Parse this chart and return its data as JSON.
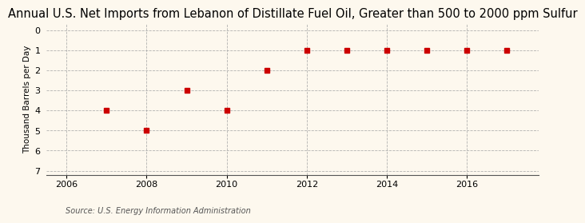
{
  "title": "Annual U.S. Net Imports from Lebanon of Distillate Fuel Oil, Greater than 500 to 2000 ppm Sulfur",
  "ylabel": "Thousand Barrels per Day",
  "source": "Source: U.S. Energy Information Administration",
  "x": [
    2007,
    2008,
    2009,
    2010,
    2011,
    2012,
    2013,
    2014,
    2015,
    2016,
    2017
  ],
  "y": [
    -4,
    -5,
    -3,
    -4,
    -2,
    -1,
    -1,
    -1,
    -1,
    -1,
    -1
  ],
  "xlim": [
    2005.5,
    2017.8
  ],
  "ylim": [
    -7.2,
    0.3
  ],
  "yticks": [
    0,
    -1,
    -2,
    -3,
    -4,
    -5,
    -6,
    -7
  ],
  "ytick_labels": [
    "0",
    "1",
    "2",
    "3",
    "4",
    "5",
    "6",
    "7"
  ],
  "xticks": [
    2006,
    2008,
    2010,
    2012,
    2014,
    2016
  ],
  "marker_color": "#cc0000",
  "marker": "s",
  "marker_size": 4,
  "bg_color": "#fdf8ee",
  "grid_color": "#aaaaaa",
  "title_fontsize": 10.5,
  "axis_label_fontsize": 7.5,
  "tick_fontsize": 8,
  "source_fontsize": 7
}
